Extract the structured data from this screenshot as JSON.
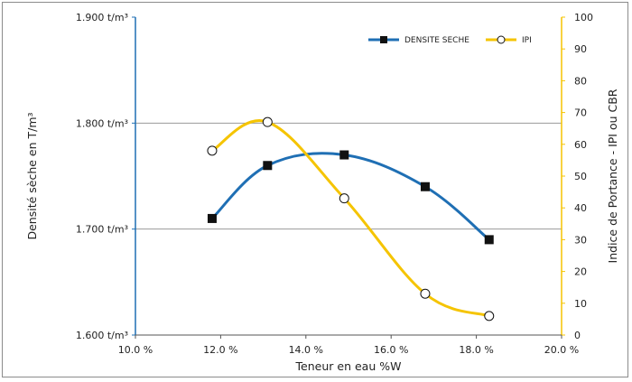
{
  "chart_data": {
    "type": "line",
    "title": "",
    "xlabel": "Teneur en eau  %W",
    "ylabel_left": "Densité sèche en T/m³",
    "ylabel_right": "Indice de Portance - IPI ou CBR",
    "xlim": [
      10.0,
      20.0
    ],
    "ylim_left": [
      1.6,
      1.9
    ],
    "ylim_right": [
      0,
      100
    ],
    "x_ticks": [
      "10.0 %",
      "12.0 %",
      "14.0 %",
      "16.0 %",
      "18.0 %",
      "20.0 %"
    ],
    "y_left_ticks": [
      "1.600 t/m³",
      "1.700 t/m³",
      "1.800 t/m³",
      "1.900 t/m³"
    ],
    "y_right_ticks": [
      "0",
      "10",
      "20",
      "30",
      "40",
      "50",
      "60",
      "70",
      "80",
      "90",
      "100"
    ],
    "grid": "horizontal",
    "legend_position": "top-right",
    "series": [
      {
        "name": "DENSITE SECHE",
        "axis": "left",
        "color": "#1f6fb4",
        "marker": "square",
        "x": [
          11.8,
          13.1,
          14.9,
          16.8,
          18.3
        ],
        "y": [
          1.71,
          1.76,
          1.77,
          1.74,
          1.69
        ]
      },
      {
        "name": "IPI",
        "axis": "right",
        "color": "#f5c400",
        "marker": "open-circle",
        "x": [
          11.8,
          13.1,
          14.9,
          16.8,
          18.3
        ],
        "y": [
          58,
          67,
          43,
          13,
          6
        ]
      }
    ]
  }
}
